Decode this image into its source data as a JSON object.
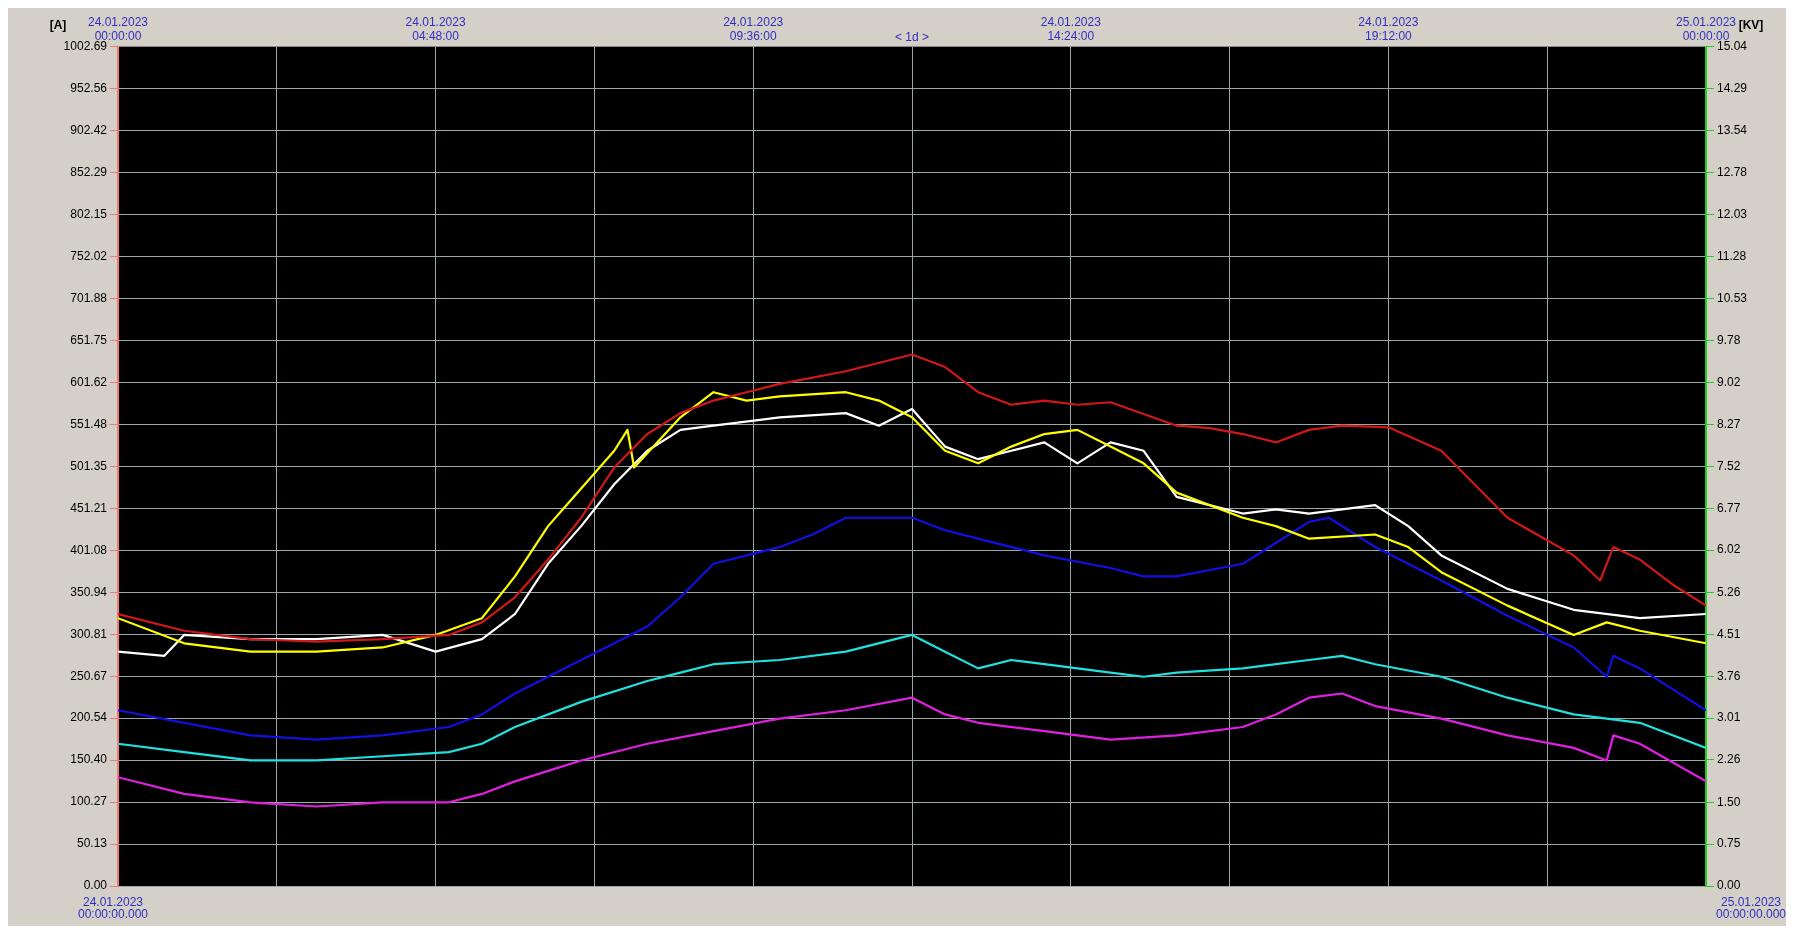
{
  "chart_data": {
    "type": "line",
    "ylabel": "[A]",
    "y2label": "[KV]",
    "annotations": [
      "< 1d >",
      "24.01.2023 00:00:00.000",
      "25.01.2023 00:00:00.000"
    ],
    "xlim": [
      "2023-01-24T00:00",
      "2023-01-25T00:00"
    ],
    "xticks": [
      {
        "value": "2023-01-24T00:00",
        "label": "24.01.2023 00:00:00"
      },
      {
        "value": "2023-01-24T02:24",
        "label": null
      },
      {
        "value": "2023-01-24T04:48",
        "label": "24.01.2023 04:48:00"
      },
      {
        "value": "2023-01-24T07:12",
        "label": null
      },
      {
        "value": "2023-01-24T09:36",
        "label": "24.01.2023 09:36:00"
      },
      {
        "value": "2023-01-24T12:00",
        "label": null
      },
      {
        "value": "2023-01-24T14:24",
        "label": "24.01.2023 14:24:00"
      },
      {
        "value": "2023-01-24T16:48",
        "label": null
      },
      {
        "value": "2023-01-24T19:12",
        "label": "24.01.2023 19:12:00"
      },
      {
        "value": "2023-01-24T21:36",
        "label": null
      },
      {
        "value": "2023-01-25T00:00",
        "label": "25.01.2023 00:00:00"
      }
    ],
    "ylim": [
      0,
      1002.69
    ],
    "yticks": [
      {
        "value": 0,
        "label": "0.00"
      },
      50.13,
      100.27,
      {
        "value": 150.4,
        "label": "150.40"
      },
      200.54,
      250.67,
      300.81,
      350.94,
      401.08,
      451.21,
      501.35,
      551.48,
      601.62,
      651.75,
      701.88,
      752.02,
      802.15,
      852.29,
      902.42,
      952.56,
      1002.69
    ],
    "y2lim": [
      0,
      15.04
    ],
    "y2ticks": [
      {
        "value": 0,
        "label": "0.00"
      },
      0.75,
      {
        "value": 1.5,
        "label": "1.50"
      },
      2.26,
      3.01,
      3.76,
      4.51,
      5.26,
      6.02,
      6.77,
      7.52,
      8.27,
      9.02,
      9.78,
      10.53,
      11.28,
      12.03,
      12.78,
      13.54,
      14.29,
      15.04
    ],
    "grid": true,
    "legend": false,
    "marker": "none",
    "line_style": "solid",
    "series": [
      {
        "color": "#d01818",
        "x": [
          "2023-01-24T00:00",
          "2023-01-24T01:00",
          "2023-01-24T02:00",
          "2023-01-24T03:00",
          "2023-01-24T04:00",
          "2023-01-24T05:00",
          "2023-01-24T05:30",
          "2023-01-24T06:00",
          "2023-01-24T06:30",
          "2023-01-24T07:00",
          "2023-01-24T07:30",
          "2023-01-24T08:00",
          "2023-01-24T08:30",
          "2023-01-24T09:00",
          "2023-01-24T09:30",
          "2023-01-24T10:00",
          "2023-01-24T11:00",
          "2023-01-24T12:00",
          "2023-01-24T12:30",
          "2023-01-24T13:00",
          "2023-01-24T13:30",
          "2023-01-24T14:00",
          "2023-01-24T14:30",
          "2023-01-24T15:00",
          "2023-01-24T16:00",
          "2023-01-24T16:30",
          "2023-01-24T17:00",
          "2023-01-24T17:30",
          "2023-01-24T18:00",
          "2023-01-24T18:30",
          "2023-01-24T19:12",
          "2023-01-24T20:00",
          "2023-01-24T21:00",
          "2023-01-24T22:00",
          "2023-01-24T22:24",
          "2023-01-24T22:36",
          "2023-01-24T23:00",
          "2023-01-24T23:30",
          "2023-01-25T00:00"
        ],
        "values": [
          325,
          305,
          295,
          292,
          295,
          300,
          315,
          345,
          390,
          440,
          500,
          540,
          565,
          580,
          590,
          600,
          615,
          635,
          620,
          590,
          575,
          580,
          575,
          578,
          550,
          547,
          540,
          530,
          545,
          550,
          548,
          520,
          440,
          395,
          365,
          405,
          390,
          360,
          335
        ]
      },
      {
        "color": "#ffff00",
        "x": [
          "2023-01-24T00:00",
          "2023-01-24T01:00",
          "2023-01-24T02:00",
          "2023-01-24T03:00",
          "2023-01-24T04:00",
          "2023-01-24T04:48",
          "2023-01-24T05:30",
          "2023-01-24T06:00",
          "2023-01-24T06:30",
          "2023-01-24T07:00",
          "2023-01-24T07:30",
          "2023-01-24T07:42",
          "2023-01-24T07:48",
          "2023-01-24T08:30",
          "2023-01-24T09:00",
          "2023-01-24T09:30",
          "2023-01-24T10:00",
          "2023-01-24T11:00",
          "2023-01-24T11:30",
          "2023-01-24T12:00",
          "2023-01-24T12:30",
          "2023-01-24T13:00",
          "2023-01-24T13:30",
          "2023-01-24T14:00",
          "2023-01-24T14:30",
          "2023-01-24T15:00",
          "2023-01-24T15:30",
          "2023-01-24T16:00",
          "2023-01-24T17:00",
          "2023-01-24T17:30",
          "2023-01-24T18:00",
          "2023-01-24T19:00",
          "2023-01-24T19:30",
          "2023-01-24T20:00",
          "2023-01-24T21:00",
          "2023-01-24T22:00",
          "2023-01-24T22:30",
          "2023-01-24T23:00",
          "2023-01-25T00:00"
        ],
        "values": [
          320,
          290,
          280,
          280,
          285,
          300,
          320,
          370,
          430,
          475,
          520,
          545,
          500,
          560,
          590,
          580,
          585,
          590,
          580,
          560,
          520,
          505,
          525,
          540,
          545,
          525,
          505,
          470,
          440,
          430,
          415,
          420,
          405,
          375,
          335,
          300,
          315,
          305,
          290
        ]
      },
      {
        "color": "#ffffff",
        "x": [
          "2023-01-24T00:00",
          "2023-01-24T00:42",
          "2023-01-24T01:00",
          "2023-01-24T02:00",
          "2023-01-24T03:00",
          "2023-01-24T04:00",
          "2023-01-24T04:48",
          "2023-01-24T05:30",
          "2023-01-24T06:00",
          "2023-01-24T06:30",
          "2023-01-24T07:00",
          "2023-01-24T07:30",
          "2023-01-24T08:00",
          "2023-01-24T08:30",
          "2023-01-24T09:00",
          "2023-01-24T10:00",
          "2023-01-24T11:00",
          "2023-01-24T11:30",
          "2023-01-24T12:00",
          "2023-01-24T12:30",
          "2023-01-24T13:00",
          "2023-01-24T13:30",
          "2023-01-24T14:00",
          "2023-01-24T14:30",
          "2023-01-24T15:00",
          "2023-01-24T15:30",
          "2023-01-24T16:00",
          "2023-01-24T17:00",
          "2023-01-24T17:30",
          "2023-01-24T18:00",
          "2023-01-24T19:00",
          "2023-01-24T19:30",
          "2023-01-24T20:00",
          "2023-01-24T21:00",
          "2023-01-24T22:00",
          "2023-01-24T23:00",
          "2023-01-25T00:00"
        ],
        "values": [
          280,
          275,
          300,
          295,
          295,
          300,
          280,
          295,
          325,
          385,
          430,
          480,
          520,
          545,
          550,
          560,
          565,
          550,
          570,
          525,
          510,
          520,
          530,
          505,
          530,
          520,
          465,
          445,
          450,
          445,
          455,
          430,
          395,
          355,
          330,
          320,
          325
        ]
      },
      {
        "color": "#1010e0",
        "x": [
          "2023-01-24T00:00",
          "2023-01-24T01:00",
          "2023-01-24T02:00",
          "2023-01-24T03:00",
          "2023-01-24T04:00",
          "2023-01-24T05:00",
          "2023-01-24T05:30",
          "2023-01-24T06:00",
          "2023-01-24T07:00",
          "2023-01-24T08:00",
          "2023-01-24T08:30",
          "2023-01-24T09:00",
          "2023-01-24T10:00",
          "2023-01-24T10:30",
          "2023-01-24T11:00",
          "2023-01-24T12:00",
          "2023-01-24T12:30",
          "2023-01-24T13:00",
          "2023-01-24T14:00",
          "2023-01-24T15:00",
          "2023-01-24T15:30",
          "2023-01-24T16:00",
          "2023-01-24T17:00",
          "2023-01-24T18:00",
          "2023-01-24T18:18",
          "2023-01-24T19:00",
          "2023-01-24T20:00",
          "2023-01-24T21:00",
          "2023-01-24T22:00",
          "2023-01-24T22:30",
          "2023-01-24T22:36",
          "2023-01-24T23:00",
          "2023-01-25T00:00"
        ],
        "values": [
          210,
          195,
          180,
          175,
          180,
          190,
          205,
          230,
          270,
          310,
          345,
          385,
          405,
          420,
          440,
          440,
          425,
          415,
          395,
          380,
          370,
          370,
          385,
          435,
          440,
          405,
          365,
          323,
          285,
          250,
          275,
          260,
          210
        ]
      },
      {
        "color": "#20e0e0",
        "x": [
          "2023-01-24T00:00",
          "2023-01-24T01:00",
          "2023-01-24T02:00",
          "2023-01-24T03:00",
          "2023-01-24T04:00",
          "2023-01-24T05:00",
          "2023-01-24T05:30",
          "2023-01-24T06:00",
          "2023-01-24T07:00",
          "2023-01-24T08:00",
          "2023-01-24T08:30",
          "2023-01-24T09:00",
          "2023-01-24T10:00",
          "2023-01-24T11:00",
          "2023-01-24T12:00",
          "2023-01-24T12:30",
          "2023-01-24T13:00",
          "2023-01-24T13:30",
          "2023-01-24T14:00",
          "2023-01-24T15:00",
          "2023-01-24T15:30",
          "2023-01-24T16:00",
          "2023-01-24T17:00",
          "2023-01-24T18:00",
          "2023-01-24T18:30",
          "2023-01-24T19:00",
          "2023-01-24T20:00",
          "2023-01-24T21:00",
          "2023-01-24T22:00",
          "2023-01-24T23:00",
          "2023-01-25T00:00"
        ],
        "values": [
          170,
          160,
          150,
          150,
          155,
          160,
          170,
          190,
          220,
          245,
          255,
          265,
          270,
          280,
          300,
          280,
          260,
          270,
          265,
          255,
          250,
          255,
          260,
          270,
          275,
          265,
          250,
          225,
          205,
          195,
          165
        ]
      },
      {
        "color": "#e020e0",
        "x": [
          "2023-01-24T00:00",
          "2023-01-24T01:00",
          "2023-01-24T02:00",
          "2023-01-24T03:00",
          "2023-01-24T04:00",
          "2023-01-24T05:00",
          "2023-01-24T05:30",
          "2023-01-24T06:00",
          "2023-01-24T07:00",
          "2023-01-24T08:00",
          "2023-01-24T09:00",
          "2023-01-24T10:00",
          "2023-01-24T11:00",
          "2023-01-24T12:00",
          "2023-01-24T12:30",
          "2023-01-24T13:00",
          "2023-01-24T14:00",
          "2023-01-24T15:00",
          "2023-01-24T16:00",
          "2023-01-24T17:00",
          "2023-01-24T17:30",
          "2023-01-24T18:00",
          "2023-01-24T18:30",
          "2023-01-24T19:00",
          "2023-01-24T20:00",
          "2023-01-24T21:00",
          "2023-01-24T22:00",
          "2023-01-24T22:30",
          "2023-01-24T22:36",
          "2023-01-24T23:00",
          "2023-01-25T00:00"
        ],
        "values": [
          130,
          110,
          100,
          95,
          100,
          100,
          110,
          125,
          150,
          170,
          185,
          200,
          210,
          225,
          205,
          195,
          185,
          175,
          180,
          190,
          205,
          225,
          230,
          215,
          200,
          180,
          165,
          150,
          180,
          170,
          125
        ]
      }
    ]
  }
}
